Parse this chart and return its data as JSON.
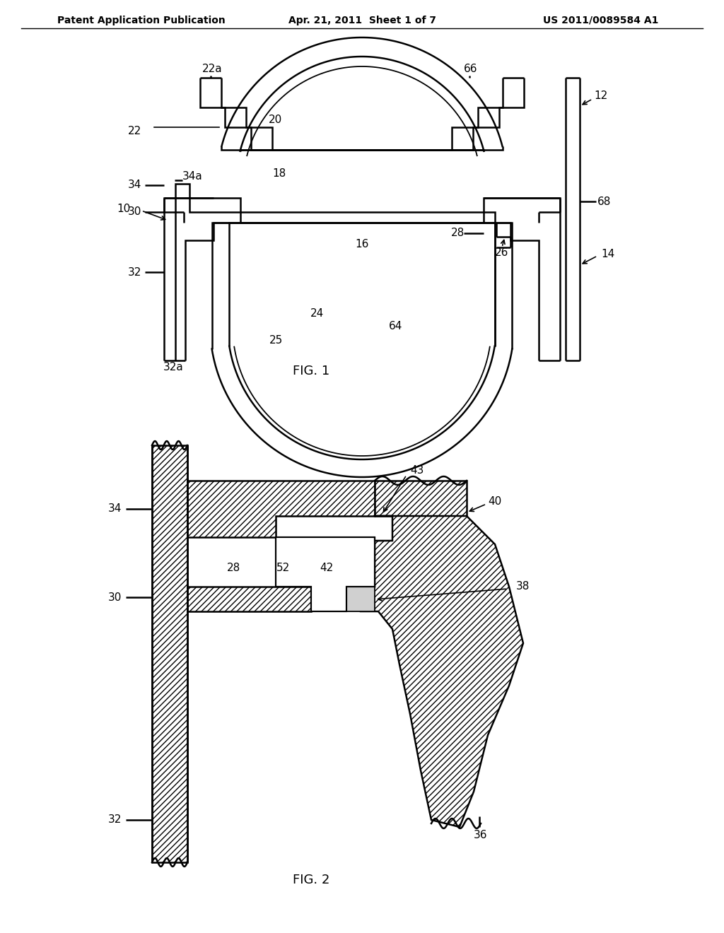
{
  "bg_color": "#ffffff",
  "line_color": "#000000",
  "header_left": "Patent Application Publication",
  "header_mid": "Apr. 21, 2011  Sheet 1 of 7",
  "header_right": "US 2011/0089584 A1",
  "fig1_label": "FIG. 1",
  "fig2_label": "FIG. 2"
}
